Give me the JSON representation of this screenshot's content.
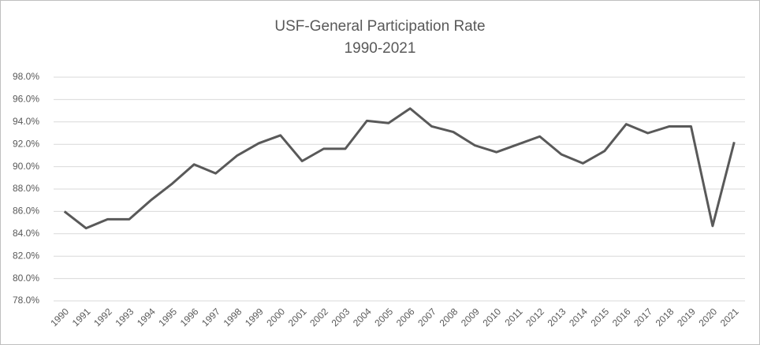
{
  "chart_data": {
    "type": "line",
    "title": "USF-General Participation Rate",
    "subtitle": "1990-2021",
    "categories": [
      "1990",
      "1991",
      "1992",
      "1993",
      "1994",
      "1995",
      "1996",
      "1997",
      "1998",
      "1999",
      "2000",
      "2001",
      "2002",
      "2003",
      "2004",
      "2005",
      "2006",
      "2007",
      "2008",
      "2009",
      "2010",
      "2011",
      "2012",
      "2013",
      "2014",
      "2015",
      "2016",
      "2017",
      "2018",
      "2019",
      "2020",
      "2021"
    ],
    "series": [
      {
        "name": "Participation Rate",
        "color": "#595959",
        "values": [
          86.0,
          84.5,
          85.3,
          85.3,
          87.0,
          88.5,
          90.2,
          89.4,
          91.0,
          92.1,
          92.8,
          90.5,
          91.6,
          91.6,
          94.1,
          93.9,
          95.2,
          93.6,
          93.1,
          91.9,
          91.3,
          92.0,
          92.7,
          91.1,
          90.3,
          91.4,
          93.8,
          93.0,
          93.6,
          93.6,
          84.7,
          92.2
        ]
      }
    ],
    "ylim": [
      78,
      98
    ],
    "yticks": [
      {
        "value": 78,
        "label": "78.0%"
      },
      {
        "value": 80,
        "label": "80.0%"
      },
      {
        "value": 82,
        "label": "82.0%"
      },
      {
        "value": 84,
        "label": "84.0%"
      },
      {
        "value": 86,
        "label": "86.0%"
      },
      {
        "value": 88,
        "label": "88.0%"
      },
      {
        "value": 90,
        "label": "90.0%"
      },
      {
        "value": 92,
        "label": "92.0%"
      },
      {
        "value": 94,
        "label": "94.0%"
      },
      {
        "value": 96,
        "label": "96.0%"
      },
      {
        "value": 98,
        "label": "98.0%"
      }
    ],
    "grid": true
  }
}
